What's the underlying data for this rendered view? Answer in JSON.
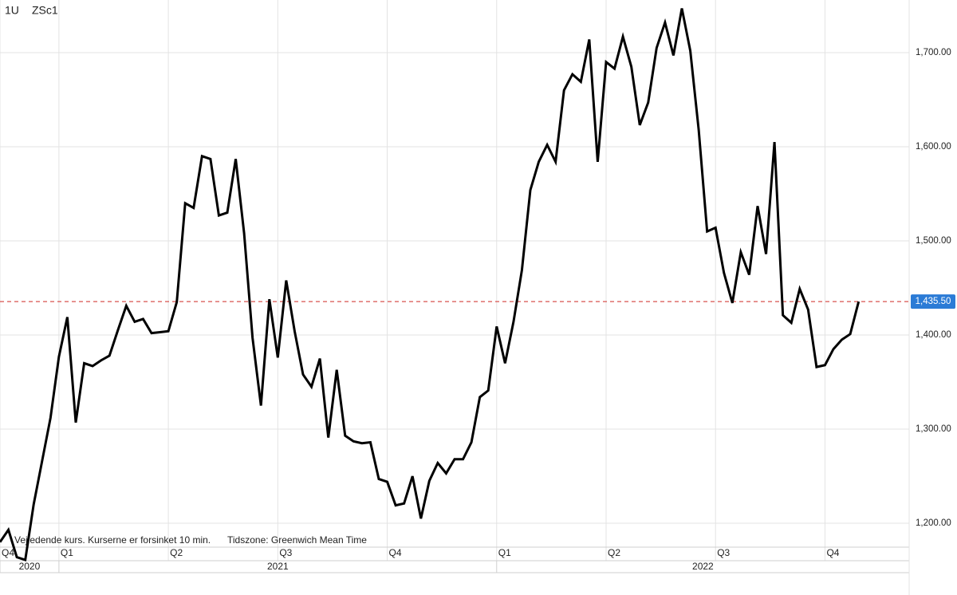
{
  "chart_data": {
    "type": "line",
    "interval": "1U",
    "symbol": "ZSc1",
    "note": "Vejledende kurs. Kurserne er forsinket 10 min.",
    "timezone": "Tidszone: Greenwich Mean Time",
    "color": "#000000",
    "values": [
      1180,
      1193,
      1164,
      1161,
      1220,
      1266,
      1312,
      1377,
      1419,
      1307,
      1370,
      1367,
      1373,
      1378,
      1405,
      1431,
      1414,
      1417,
      1402,
      1403,
      1404,
      1435,
      1540,
      1535,
      1590,
      1587,
      1527,
      1530,
      1587,
      1508,
      1397,
      1325,
      1438,
      1376,
      1458,
      1404,
      1358,
      1345,
      1375,
      1291,
      1363,
      1293,
      1287,
      1285,
      1286,
      1247,
      1244,
      1219,
      1221,
      1250,
      1205,
      1245,
      1264,
      1253,
      1268,
      1268,
      1286,
      1334,
      1341,
      1409,
      1370,
      1414,
      1469,
      1554,
      1584,
      1602,
      1584,
      1660,
      1677,
      1669,
      1714,
      1584,
      1690,
      1683,
      1717,
      1685,
      1623,
      1647,
      1705,
      1732,
      1697,
      1747,
      1702,
      1618,
      1510,
      1514,
      1466,
      1434,
      1488,
      1464,
      1537,
      1486,
      1605,
      1421,
      1413,
      1449,
      1427,
      1366,
      1368,
      1385,
      1395,
      1401,
      1435.5
    ],
    "last_price": {
      "value": 1435.5,
      "label": "1,435.50"
    },
    "last_price_color": "#2b7bd6",
    "xlim": [
      0,
      108
    ],
    "xticks": [
      {
        "value": 0,
        "label": "Q4"
      },
      {
        "value": 7,
        "label": "Q1"
      },
      {
        "value": 20,
        "label": "Q2"
      },
      {
        "value": 33,
        "label": "Q3"
      },
      {
        "value": 46,
        "label": "Q4"
      },
      {
        "value": 59,
        "label": "Q1"
      },
      {
        "value": 72,
        "label": "Q2"
      },
      {
        "value": 85,
        "label": "Q3"
      },
      {
        "value": 98,
        "label": "Q4"
      }
    ],
    "year_ticks": [
      {
        "value": 0,
        "label": "2020"
      },
      {
        "value": 7,
        "label": "2021"
      },
      {
        "value": 59,
        "label": "2022"
      }
    ],
    "ylim": [
      1174.6,
      1755.9
    ],
    "yticks": [
      {
        "value": 1200,
        "label": "1,200.00"
      },
      {
        "value": 1300,
        "label": "1,300.00"
      },
      {
        "value": 1400,
        "label": "1,400.00"
      },
      {
        "value": 1500,
        "label": "1,500.00"
      },
      {
        "value": 1600,
        "label": "1,600.00"
      },
      {
        "value": 1700,
        "label": "1,700.00"
      }
    ],
    "grid": true
  }
}
